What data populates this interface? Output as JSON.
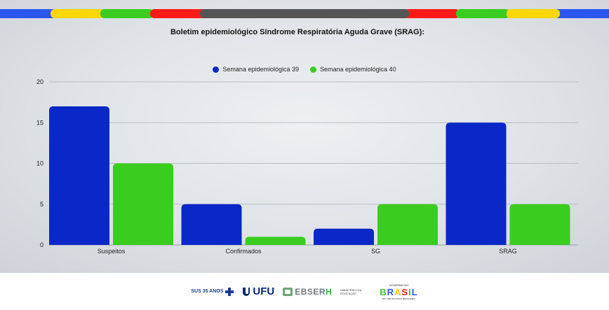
{
  "chart_data": {
    "type": "bar",
    "title": "Boletim epidemiológico Síndrome Respiratória Aguda Grave (SRAG):",
    "categories": [
      "Suspeitos",
      "Confirmados",
      "SG",
      "SRAG"
    ],
    "series": [
      {
        "name": "Semana epidemiológica 39",
        "color": "#0a27c8",
        "values": [
          17,
          5,
          2,
          15
        ]
      },
      {
        "name": "Semana epidemiológica 40",
        "color": "#3acd1f",
        "values": [
          10,
          1,
          5,
          5
        ]
      }
    ],
    "ylim": [
      0,
      20
    ],
    "yticks": [
      0,
      5,
      10,
      15,
      20
    ],
    "grid": true,
    "legend_position": "top-center",
    "xlabel": "",
    "ylabel": ""
  },
  "header_stripe_colors": [
    "#2b57f0",
    "#ffd700",
    "#3acd1f",
    "#ff1a1a",
    "#555555"
  ],
  "footer": {
    "logo_sus_text": "SUS 35 ANOS",
    "logo_ufu_text": "UFU",
    "logo_ebserh_text": "EBSER",
    "logo_ebserh_h": "H",
    "logo_mec_text": "MINISTÉRIO DA EDUCAÇÃO",
    "logo_brasil_gov": "GOVERNO DO",
    "logo_brasil_word": "BRASIL",
    "logo_brasil_tag": "DO LADO DO POVO BRASILEIRO"
  }
}
